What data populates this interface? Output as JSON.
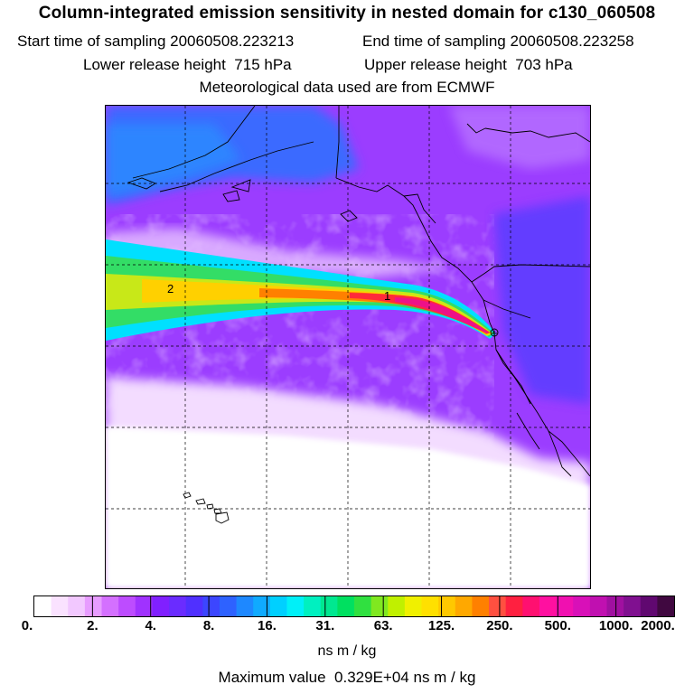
{
  "header": {
    "title": "Column-integrated emission sensitivity in nested domain for c130_060508",
    "start_label": "Start time of sampling",
    "start_value": "20060508.223213",
    "end_label": "End time of sampling",
    "end_value": "20060508.223258",
    "lower_label": "Lower release height",
    "lower_value": "715 hPa",
    "upper_label": "Upper release height",
    "upper_value": "703 hPa",
    "met_text": "Meteorological data used are from ECMWF"
  },
  "map": {
    "plume_markers": [
      "2",
      "1"
    ],
    "release_site_marker": "+",
    "colors": {
      "background": "#9b3dff",
      "low_sensitivity": "#f0d6ff",
      "blue_region": "#3a6bff",
      "plume_edge": "#00e0ff",
      "plume_green": "#33dd66",
      "plume_yellow": "#f0e020",
      "plume_red": "#ff2a3a",
      "plume_core": "#ee1188"
    }
  },
  "colorbar": {
    "tick_labels": [
      "0.",
      "2.",
      "4.",
      "8.",
      "16.",
      "31.",
      "63.",
      "125.",
      "250.",
      "500.",
      "1000.",
      "2000."
    ],
    "colors": [
      "#ffffff",
      "#fae2ff",
      "#f2c8ff",
      "#e79cff",
      "#d470ff",
      "#bd4cff",
      "#a032ff",
      "#8020ff",
      "#6a2cff",
      "#5030ff",
      "#3c46ff",
      "#2e62ff",
      "#1e88ff",
      "#10aaff",
      "#00d0ff",
      "#00f0f8",
      "#00f0c0",
      "#00e890",
      "#00e060",
      "#30e040",
      "#80e820",
      "#c0f000",
      "#f0f000",
      "#ffe000",
      "#ffc800",
      "#ffa800",
      "#ff8000",
      "#ff5040",
      "#ff2040",
      "#ff1070",
      "#ff10a0",
      "#f010b0",
      "#d810b8",
      "#c010b0",
      "#a010a0",
      "#801090",
      "#600870",
      "#400840"
    ],
    "units": "ns m / kg",
    "max_label": "Maximum value",
    "max_value": "0.329E+04",
    "max_units": "ns m / kg"
  }
}
